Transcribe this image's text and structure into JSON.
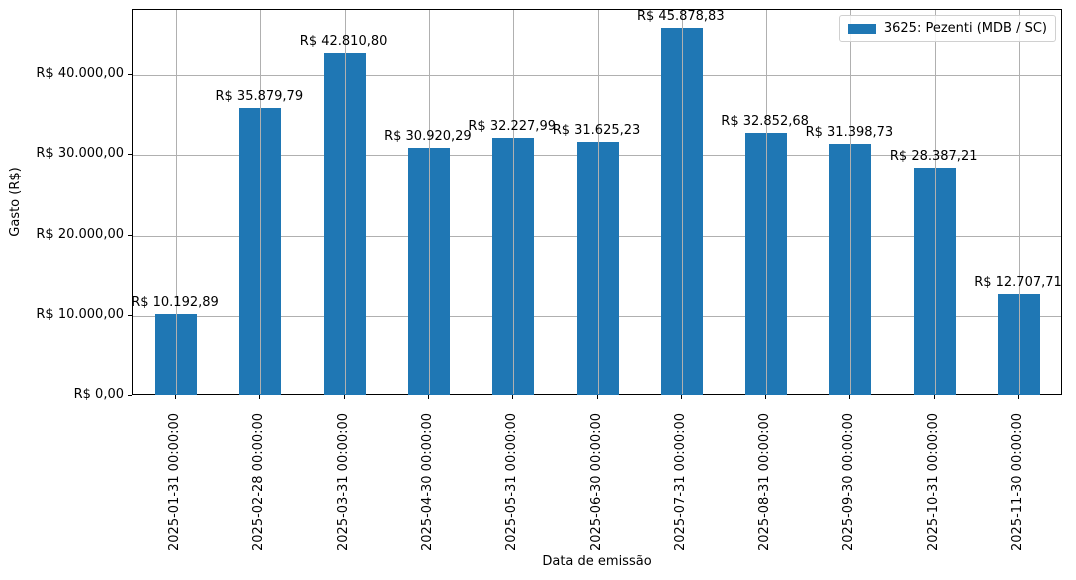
{
  "chart_data": {
    "type": "bar",
    "title": "",
    "xlabel": "Data de emissão",
    "ylabel": "Gasto (R$)",
    "ylim": [
      0,
      48130
    ],
    "grid": true,
    "legend_position": "upper right",
    "categories": [
      "2025-01-31 00:00:00",
      "2025-02-28 00:00:00",
      "2025-03-31 00:00:00",
      "2025-04-30 00:00:00",
      "2025-05-31 00:00:00",
      "2025-06-30 00:00:00",
      "2025-07-31 00:00:00",
      "2025-08-31 00:00:00",
      "2025-09-30 00:00:00",
      "2025-10-31 00:00:00",
      "2025-11-30 00:00:00"
    ],
    "series": [
      {
        "name": "3625: Pezenti (MDB / SC)",
        "color": "#1f77b4",
        "values": [
          10192.89,
          35879.79,
          42810.8,
          30920.29,
          32227.99,
          31625.23,
          45878.83,
          32852.68,
          31398.73,
          28387.21,
          12707.71
        ],
        "labels": [
          "R$ 10.192,89",
          "R$ 35.879,79",
          "R$ 42.810,80",
          "R$ 30.920,29",
          "R$ 32.227,99",
          "R$ 31.625,23",
          "R$ 45.878,83",
          "R$ 32.852,68",
          "R$ 31.398,73",
          "R$ 28.387,21",
          "R$ 12.707,71"
        ]
      }
    ],
    "yticks": [
      {
        "value": 0,
        "label": "R$ 0,00"
      },
      {
        "value": 10000,
        "label": "R$ 10.000,00"
      },
      {
        "value": 20000,
        "label": "R$ 20.000,00"
      },
      {
        "value": 30000,
        "label": "R$ 30.000,00"
      },
      {
        "value": 40000,
        "label": "R$ 40.000,00"
      }
    ]
  },
  "legend": {
    "label": "3625: Pezenti (MDB / SC)"
  },
  "axes": {
    "xlabel": "Data de emissão",
    "ylabel": "Gasto (R$)"
  }
}
